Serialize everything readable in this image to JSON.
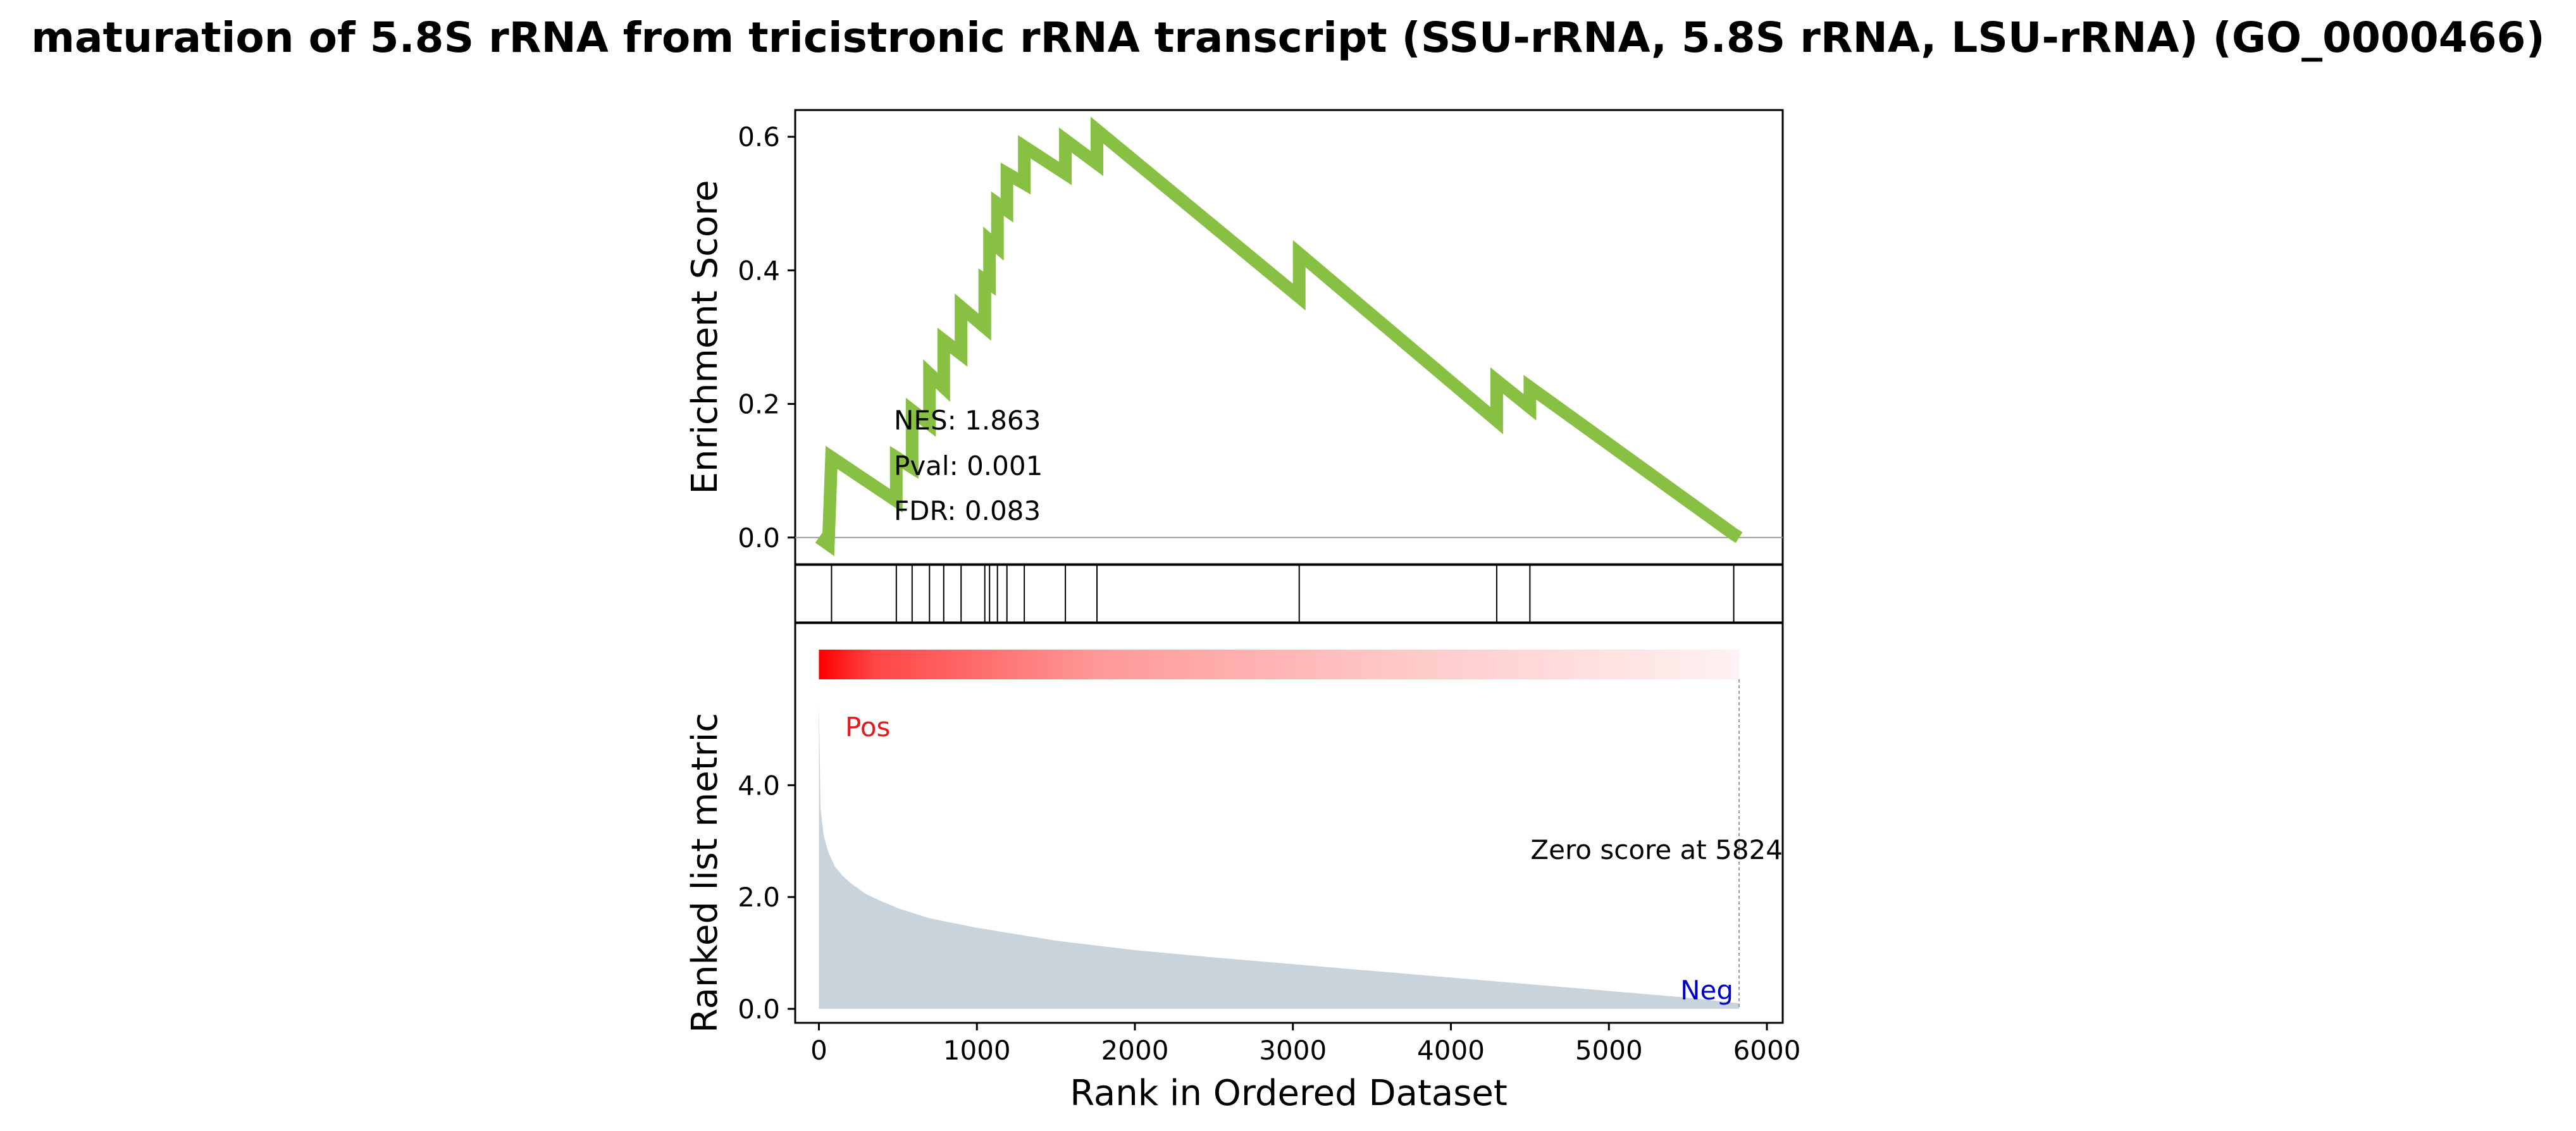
{
  "chart_data": {
    "type": "line",
    "title": "maturation of 5.8S rRNA from tricistronic rRNA transcript (SSU-rRNA, 5.8S rRNA, LSU-rRNA) (GO_0000466)",
    "xlabel": "Rank in Ordered Dataset",
    "top_ylabel": "Enrichment Score",
    "bottom_ylabel": "Ranked list metric",
    "xlim": [
      -150,
      6100
    ],
    "top_ylim": [
      -0.04,
      0.64
    ],
    "bottom_ylim": [
      -0.25,
      6.9
    ],
    "x_ticks": [
      "0",
      "1000",
      "2000",
      "3000",
      "4000",
      "5000",
      "6000"
    ],
    "top_y_ticks": [
      "0.0",
      "0.2",
      "0.4",
      "0.6"
    ],
    "bottom_y_ticks": [
      "0.0",
      "2.0",
      "4.0"
    ],
    "stats": {
      "nes": "NES: 1.863",
      "pval": "Pval: 0.001",
      "fdr": "FDR: 0.083"
    },
    "pos_label": "Pos",
    "neg_label": "Neg",
    "zero_score_label": "Zero score at 5824",
    "zero_score_rank": 5824,
    "n_genes": 5824,
    "hit_ranks": [
      80,
      490,
      590,
      700,
      790,
      900,
      1050,
      1080,
      1130,
      1190,
      1300,
      1560,
      1760,
      3040,
      4290,
      4500,
      5790
    ],
    "running_es": {
      "x": [
        0,
        60,
        80,
        490,
        490,
        590,
        590,
        700,
        700,
        790,
        790,
        900,
        900,
        1050,
        1050,
        1080,
        1080,
        1130,
        1130,
        1190,
        1190,
        1300,
        1300,
        1560,
        1560,
        1760,
        1760,
        3040,
        3040,
        4290,
        4290,
        4500,
        4500,
        5790,
        5824
      ],
      "y": [
        0.0,
        -0.01,
        0.12,
        0.055,
        0.12,
        0.105,
        0.19,
        0.17,
        0.245,
        0.225,
        0.295,
        0.275,
        0.345,
        0.315,
        0.385,
        0.38,
        0.445,
        0.435,
        0.5,
        0.49,
        0.545,
        0.53,
        0.585,
        0.545,
        0.595,
        0.56,
        0.61,
        0.36,
        0.425,
        0.175,
        0.235,
        0.195,
        0.225,
        0.005,
        0.0
      ]
    },
    "ranked_metric": {
      "x": [
        0,
        10,
        30,
        60,
        100,
        150,
        200,
        300,
        400,
        500,
        700,
        1000,
        1500,
        2000,
        2500,
        3000,
        3500,
        4000,
        4500,
        5000,
        5500,
        5824
      ],
      "y": [
        5.5,
        3.6,
        3.1,
        2.8,
        2.55,
        2.38,
        2.25,
        2.05,
        1.92,
        1.8,
        1.62,
        1.45,
        1.22,
        1.05,
        0.92,
        0.8,
        0.68,
        0.56,
        0.44,
        0.32,
        0.2,
        0.1
      ]
    },
    "colors": {
      "es_line": "#88c043",
      "fill": "#c9d3dc",
      "heat_high": "#ff0000",
      "heat_low": "#ffffff",
      "pos": "#e41a1c",
      "neg": "#0000cd",
      "zero_line": "#999999"
    }
  }
}
